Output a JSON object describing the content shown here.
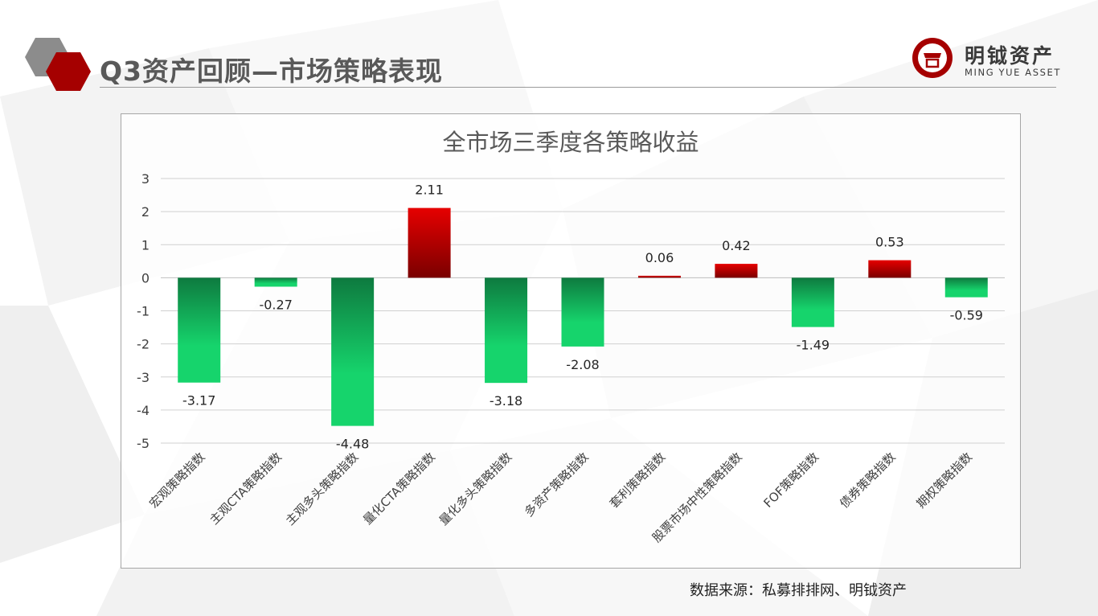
{
  "page": {
    "title": "Q3资产回顾—市场策略表现",
    "logo_name": "明钺资产",
    "logo_sub": "MING YUE ASSET",
    "source": "数据来源：私募排排网、明钺资产"
  },
  "colors": {
    "positive_top": "#e60000",
    "positive_bottom": "#7a0000",
    "negative_top": "#0e7a3f",
    "negative_bottom": "#16d46c",
    "accent_red": "#a50000",
    "hex_grey": "#8c8c8c"
  },
  "icons": [
    "grey-hexagon-icon",
    "red-hexagon-icon",
    "logo-mark-icon"
  ],
  "chart_data": {
    "type": "bar",
    "title": "全市场三季度各策略收益",
    "xlabel": "",
    "ylabel": "",
    "categories": [
      "宏观策略指数",
      "主观CTA策略指数",
      "主观多头策略指数",
      "量化CTA策略指数",
      "量化多头策略指数",
      "多资产策略指数",
      "套利策略指数",
      "股票市场中性策略指数",
      "FOF策略指数",
      "债券策略指数",
      "期权策略指数"
    ],
    "values": [
      -3.17,
      -0.27,
      -4.48,
      2.11,
      -3.18,
      -2.08,
      0.06,
      0.42,
      -1.49,
      0.53,
      -0.59
    ],
    "value_labels": [
      "-3.17",
      "-0.27",
      "-4.48",
      "2.11",
      "-3.18",
      "-2.08",
      "0.06",
      "0.42",
      "-1.49",
      "0.53",
      "-0.59"
    ],
    "yticks": [
      3,
      2,
      1,
      0,
      -1,
      -2,
      -3,
      -4,
      -5
    ],
    "ylim": [
      -5,
      3
    ],
    "grid": true,
    "legend": "none"
  }
}
